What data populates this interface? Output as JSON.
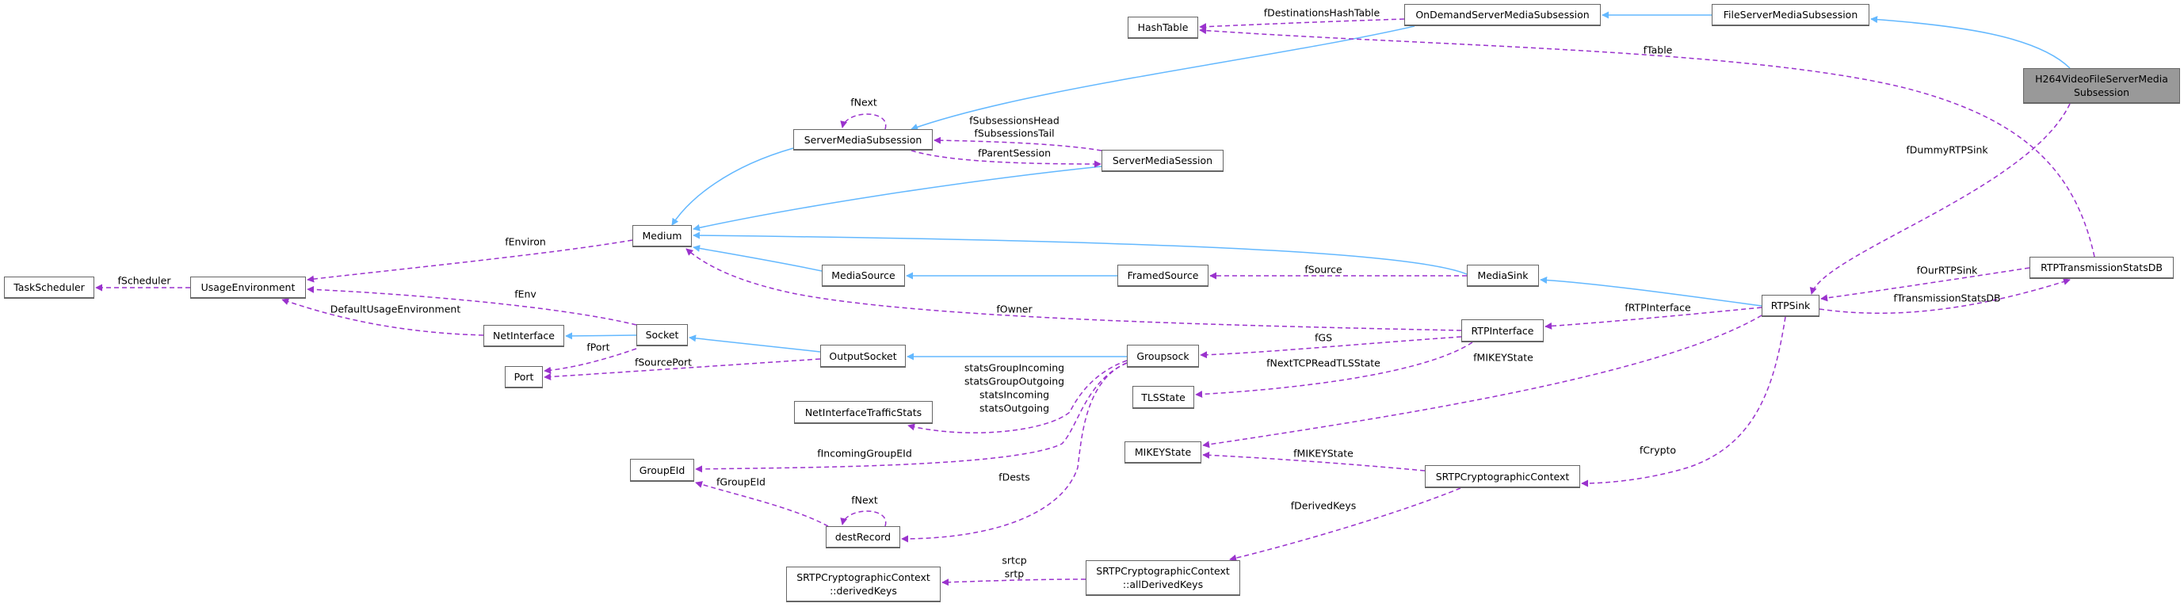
{
  "colors": {
    "inheritance": "#63b8ff",
    "usage": "#9a32cd",
    "current_node_fill": "#999999",
    "node_border": "#666666"
  },
  "nodes": {
    "TaskScheduler": {
      "lines": [
        "TaskScheduler"
      ]
    },
    "UsageEnvironment": {
      "lines": [
        "UsageEnvironment"
      ]
    },
    "Medium": {
      "lines": [
        "Medium"
      ]
    },
    "ServerMediaSubsession": {
      "lines": [
        "ServerMediaSubsession"
      ]
    },
    "ServerMediaSession": {
      "lines": [
        "ServerMediaSession"
      ]
    },
    "HashTable": {
      "lines": [
        "HashTable"
      ]
    },
    "OnDemandServerMediaSubsession": {
      "lines": [
        "OnDemandServerMediaSubsession"
      ]
    },
    "FileServerMediaSubsession": {
      "lines": [
        "FileServerMediaSubsession"
      ]
    },
    "H264VideoFileServerMediaSubsession": {
      "lines": [
        "H264VideoFileServerMedia",
        "Subsession"
      ],
      "current": true
    },
    "MediaSource": {
      "lines": [
        "MediaSource"
      ]
    },
    "FramedSource": {
      "lines": [
        "FramedSource"
      ]
    },
    "MediaSink": {
      "lines": [
        "MediaSink"
      ]
    },
    "RTPSink": {
      "lines": [
        "RTPSink"
      ]
    },
    "RTPTransmissionStatsDB": {
      "lines": [
        "RTPTransmissionStatsDB"
      ]
    },
    "NetInterface": {
      "lines": [
        "NetInterface"
      ]
    },
    "Socket": {
      "lines": [
        "Socket"
      ]
    },
    "Port": {
      "lines": [
        "Port"
      ]
    },
    "OutputSocket": {
      "lines": [
        "OutputSocket"
      ]
    },
    "Groupsock": {
      "lines": [
        "Groupsock"
      ]
    },
    "RTPInterface": {
      "lines": [
        "RTPInterface"
      ]
    },
    "TLSState": {
      "lines": [
        "TLSState"
      ]
    },
    "NetInterfaceTrafficStats": {
      "lines": [
        "NetInterfaceTrafficStats"
      ]
    },
    "MIKEYState": {
      "lines": [
        "MIKEYState"
      ]
    },
    "GroupEId": {
      "lines": [
        "GroupEId"
      ]
    },
    "SRTPCryptographicContext": {
      "lines": [
        "SRTPCryptographicContext"
      ]
    },
    "destRecord": {
      "lines": [
        "destRecord"
      ]
    },
    "derivedKeys": {
      "lines": [
        "SRTPCryptographicContext",
        "::derivedKeys"
      ]
    },
    "allDerivedKeys": {
      "lines": [
        "SRTPCryptographicContext",
        "::allDerivedKeys"
      ]
    }
  },
  "edges": [
    {
      "id": "e1",
      "kind": "inheritance",
      "from": "FileServerMediaSubsession",
      "to": "OnDemandServerMediaSubsession",
      "labels": []
    },
    {
      "id": "e2",
      "kind": "inheritance",
      "from": "H264VideoFileServerMediaSubsession",
      "to": "FileServerMediaSubsession",
      "labels": []
    },
    {
      "id": "e3",
      "kind": "inheritance",
      "from": "OnDemandServerMediaSubsession",
      "to": "ServerMediaSubsession",
      "labels": []
    },
    {
      "id": "e4",
      "kind": "inheritance",
      "from": "ServerMediaSubsession",
      "to": "Medium",
      "labels": []
    },
    {
      "id": "e5",
      "kind": "inheritance",
      "from": "ServerMediaSession",
      "to": "Medium",
      "labels": []
    },
    {
      "id": "e6",
      "kind": "inheritance",
      "from": "MediaSink",
      "to": "Medium",
      "labels": []
    },
    {
      "id": "e7",
      "kind": "inheritance",
      "from": "MediaSource",
      "to": "Medium",
      "labels": []
    },
    {
      "id": "e8",
      "kind": "inheritance",
      "from": "FramedSource",
      "to": "MediaSource",
      "labels": []
    },
    {
      "id": "e9",
      "kind": "inheritance",
      "from": "RTPSink",
      "to": "MediaSink",
      "labels": []
    },
    {
      "id": "e10",
      "kind": "inheritance",
      "from": "Socket",
      "to": "NetInterface",
      "labels": []
    },
    {
      "id": "e11",
      "kind": "inheritance",
      "from": "OutputSocket",
      "to": "Socket",
      "labels": []
    },
    {
      "id": "e12",
      "kind": "inheritance",
      "from": "Groupsock",
      "to": "OutputSocket",
      "labels": []
    },
    {
      "id": "u1",
      "kind": "usage",
      "from": "OnDemandServerMediaSubsession",
      "to": "HashTable",
      "labels": [
        "fDestinationsHashTable"
      ]
    },
    {
      "id": "u2",
      "kind": "usage",
      "from": "RTPTransmissionStatsDB",
      "to": "HashTable",
      "labels": [
        "fTable"
      ]
    },
    {
      "id": "u3",
      "kind": "usage",
      "from": "H264VideoFileServerMediaSubsession",
      "to": "RTPSink",
      "labels": [
        "fDummyRTPSink"
      ]
    },
    {
      "id": "u4",
      "kind": "usage",
      "from": "ServerMediaSession",
      "to": "ServerMediaSubsession",
      "labels": [
        "fSubsessionsHead",
        "fSubsessionsTail"
      ]
    },
    {
      "id": "u5",
      "kind": "usage",
      "from": "ServerMediaSubsession",
      "to": "ServerMediaSession",
      "labels": [
        "fParentSession"
      ]
    },
    {
      "id": "u6",
      "kind": "usage",
      "from": "ServerMediaSubsession",
      "to": "ServerMediaSubsession",
      "labels": [
        "fNext"
      ]
    },
    {
      "id": "u7",
      "kind": "usage",
      "from": "Medium",
      "to": "UsageEnvironment",
      "labels": [
        "fEnviron"
      ]
    },
    {
      "id": "u8",
      "kind": "usage",
      "from": "UsageEnvironment",
      "to": "TaskScheduler",
      "labels": [
        "fScheduler"
      ]
    },
    {
      "id": "u9",
      "kind": "usage",
      "from": "Socket",
      "to": "UsageEnvironment",
      "labels": [
        "fEnv"
      ]
    },
    {
      "id": "u10",
      "kind": "usage",
      "from": "NetInterface",
      "to": "UsageEnvironment",
      "labels": [
        "DefaultUsageEnvironment"
      ]
    },
    {
      "id": "u11",
      "kind": "usage",
      "from": "RTPInterface",
      "to": "Medium",
      "labels": [
        "fOwner"
      ]
    },
    {
      "id": "u12",
      "kind": "usage",
      "from": "Socket",
      "to": "Port",
      "labels": [
        "fPort"
      ]
    },
    {
      "id": "u13",
      "kind": "usage",
      "from": "OutputSocket",
      "to": "Port",
      "labels": [
        "fSourcePort"
      ]
    },
    {
      "id": "u14",
      "kind": "usage",
      "from": "RTPInterface",
      "to": "Groupsock",
      "labels": [
        "fGS"
      ]
    },
    {
      "id": "u15",
      "kind": "usage",
      "from": "RTPInterface",
      "to": "TLSState",
      "labels": [
        "fNextTCPReadTLSState"
      ]
    },
    {
      "id": "u16",
      "kind": "usage",
      "from": "RTPSink",
      "to": "RTPInterface",
      "labels": [
        "fRTPInterface"
      ]
    },
    {
      "id": "u17",
      "kind": "usage",
      "from": "RTPSink",
      "to": "MIKEYState",
      "labels": [
        "fMIKEYState"
      ]
    },
    {
      "id": "u18",
      "kind": "usage",
      "from": "SRTPCryptographicContext",
      "to": "MIKEYState",
      "labels": [
        "fMIKEYState"
      ]
    },
    {
      "id": "u19",
      "kind": "usage",
      "from": "RTPSink",
      "to": "SRTPCryptographicContext",
      "labels": [
        "fCrypto"
      ]
    },
    {
      "id": "u20",
      "kind": "usage",
      "from": "SRTPCryptographicContext",
      "to": "allDerivedKeys",
      "labels": [
        "fDerivedKeys"
      ]
    },
    {
      "id": "u21",
      "kind": "usage",
      "from": "allDerivedKeys",
      "to": "derivedKeys",
      "labels": [
        "srtcp",
        "srtp"
      ]
    },
    {
      "id": "u22",
      "kind": "usage",
      "from": "RTPTransmissionStatsDB",
      "to": "RTPSink",
      "labels": [
        "fOurRTPSink"
      ]
    },
    {
      "id": "u23",
      "kind": "usage",
      "from": "RTPSink",
      "to": "RTPTransmissionStatsDB",
      "labels": [
        "fTransmissionStatsDB"
      ]
    },
    {
      "id": "u24",
      "kind": "usage",
      "from": "MediaSink",
      "to": "FramedSource",
      "labels": [
        "fSource"
      ]
    },
    {
      "id": "u25",
      "kind": "usage",
      "from": "Groupsock",
      "to": "NetInterfaceTrafficStats",
      "labels": [
        "statsGroupIncoming",
        "statsGroupOutgoing",
        "statsIncoming",
        "statsOutgoing"
      ]
    },
    {
      "id": "u26",
      "kind": "usage",
      "from": "Groupsock",
      "to": "GroupEId",
      "labels": [
        "fIncomingGroupEId"
      ]
    },
    {
      "id": "u27",
      "kind": "usage",
      "from": "Groupsock",
      "to": "destRecord",
      "labels": [
        "fDests"
      ]
    },
    {
      "id": "u28",
      "kind": "usage",
      "from": "destRecord",
      "to": "GroupEId",
      "labels": [
        "fGroupEId"
      ]
    },
    {
      "id": "u29",
      "kind": "usage",
      "from": "destRecord",
      "to": "destRecord",
      "labels": [
        "fNext"
      ]
    }
  ]
}
